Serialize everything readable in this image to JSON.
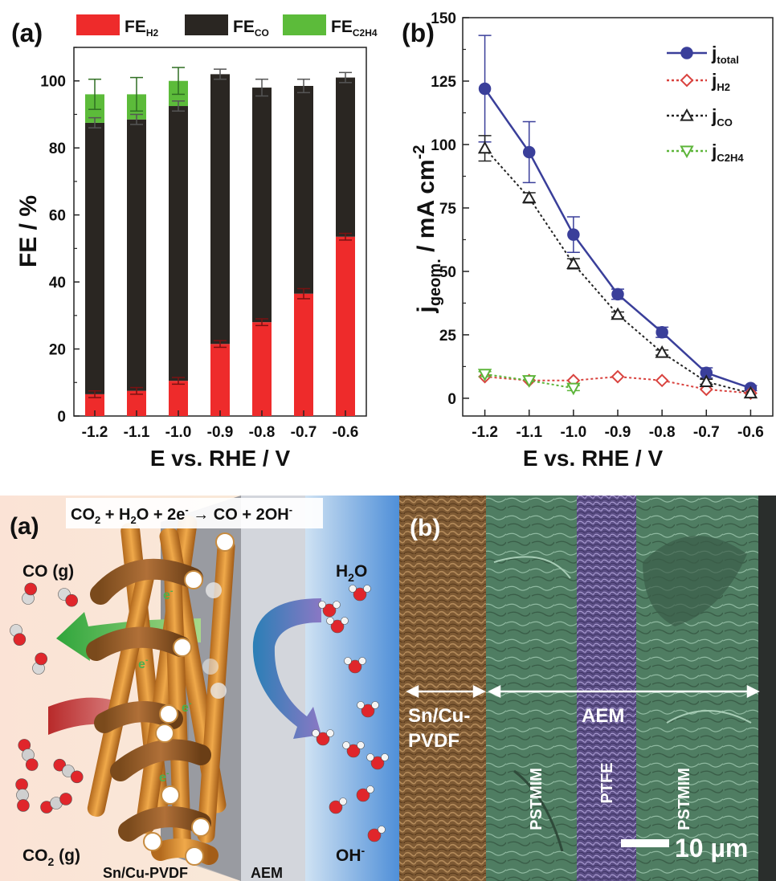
{
  "top_panels": {
    "a": {
      "label": "(a)"
    },
    "b": {
      "label": "(b)"
    }
  },
  "chart_data": [
    {
      "type": "bar",
      "stacked": true,
      "categories": [
        "-1.2",
        "-1.1",
        "-1.0",
        "-0.9",
        "-0.8",
        "-0.7",
        "-0.6"
      ],
      "series": [
        {
          "name": "FE_H2",
          "legend_main": "FE",
          "legend_sub": "H",
          "legend_sub2": "2",
          "color": "#ee2b2b",
          "values": [
            6.5,
            7.5,
            10.5,
            21.5,
            28.0,
            36.5,
            53.5
          ],
          "err": [
            1.0,
            1.0,
            1.0,
            1.0,
            1.0,
            1.5,
            1.0
          ]
        },
        {
          "name": "FE_CO",
          "legend_main": "FE",
          "legend_sub": "CO",
          "color": "#2a2622",
          "values": [
            81.0,
            81.0,
            82.0,
            80.5,
            70.0,
            62.0,
            47.5
          ],
          "err": [
            1.5,
            1.5,
            1.5,
            1.5,
            2.5,
            2.0,
            1.5
          ]
        },
        {
          "name": "FE_C2H4",
          "legend_main": "FE",
          "legend_sub": "C",
          "legend_sub2": "2",
          "legend_sub3": "H",
          "legend_sub4": "4",
          "color": "#5cbb3a",
          "values": [
            8.5,
            7.5,
            7.5,
            0,
            0,
            0,
            0
          ],
          "err": [
            4.5,
            5.0,
            4.0,
            0,
            0,
            0,
            0
          ]
        }
      ],
      "total_err": [
        1.0,
        1.0,
        1.0,
        2.0,
        3.0,
        2.5,
        1.5
      ],
      "xlabel": "E vs. RHE / V",
      "ylabel": "FE / %",
      "ylim": [
        0,
        110
      ],
      "yticks": [
        "0",
        "20",
        "40",
        "60",
        "80",
        "100"
      ]
    },
    {
      "type": "line",
      "x": [
        -1.2,
        -1.1,
        -1.0,
        -0.9,
        -0.8,
        -0.7,
        -0.6
      ],
      "xticks": [
        "-1.2",
        "-1.1",
        "-1.0",
        "-0.9",
        "-0.8",
        "-0.7",
        "-0.6"
      ],
      "series": [
        {
          "name": "j_total",
          "legend_main": "j",
          "legend_sub": "total",
          "color": "#3a3f9a",
          "marker": "circle-filled",
          "line": "solid",
          "y": [
            122,
            97,
            64.5,
            41,
            26,
            10,
            4
          ],
          "err": [
            21,
            12,
            7,
            2,
            2,
            2,
            1
          ]
        },
        {
          "name": "j_H2",
          "legend_main": "j",
          "legend_sub": "H",
          "legend_sub2": "2",
          "color": "#d9433f",
          "marker": "diamond-open",
          "line": "dotted",
          "y": [
            8.5,
            7,
            7,
            8.5,
            7,
            3.5,
            2
          ],
          "err": [
            0.5,
            0.5,
            0.5,
            0.5,
            0.5,
            0.5,
            0.5
          ]
        },
        {
          "name": "j_CO",
          "legend_main": "j",
          "legend_sub": "CO",
          "color": "#222222",
          "marker": "triangle-open",
          "line": "dotted",
          "y": [
            98.5,
            79,
            53,
            33,
            18,
            6.5,
            2
          ],
          "err": [
            5,
            2,
            2,
            1,
            1,
            1,
            0.5
          ]
        },
        {
          "name": "j_C2H4",
          "legend_main": "j",
          "legend_sub": "C",
          "legend_sub2": "2",
          "legend_sub3": "H",
          "legend_sub4": "4",
          "color": "#5db53a",
          "marker": "triangle-down-open",
          "line": "dotted",
          "y": [
            9.5,
            7,
            4,
            null,
            null,
            null,
            null
          ],
          "err": [
            1,
            0.5,
            1,
            0,
            0,
            0,
            0
          ]
        }
      ],
      "xlabel": "E vs. RHE / V",
      "ylabel_main": "j",
      "ylabel_sub": "geom.",
      "ylabel_rest": " / mA cm",
      "ylabel_sup": "-2",
      "xlim": [
        -1.25,
        -0.55
      ],
      "ylim": [
        -7,
        150
      ],
      "yticks": [
        "0",
        "25",
        "50",
        "75",
        "100",
        "125",
        "150"
      ]
    }
  ],
  "schematic": {
    "label": "(a)",
    "equation": {
      "p1": "CO",
      "s1": "2",
      "p2": " + H",
      "s2": "2",
      "p3": "O + 2e",
      "sup1": "-",
      "p4": " → CO + 2OH",
      "sup2": "-"
    },
    "co_gas": "CO (g)",
    "co2_gas": {
      "main": "CO",
      "sub": "2",
      "rest": " (g)"
    },
    "h2o": {
      "main": "H",
      "sub": "2",
      "rest": "O"
    },
    "oh": {
      "main": "OH",
      "sup": "-"
    },
    "electron": {
      "main": "e",
      "sup": "-"
    },
    "cathode_label": "Sn/Cu-PVDF",
    "aem_label": "AEM"
  },
  "micrograph": {
    "label": "(b)",
    "layer1": {
      "line1": "Sn/Cu-",
      "line2": "PVDF"
    },
    "aem": "AEM",
    "pstmim": "PSTMIM",
    "ptfe": "PTFE",
    "scale": "10 µm"
  }
}
